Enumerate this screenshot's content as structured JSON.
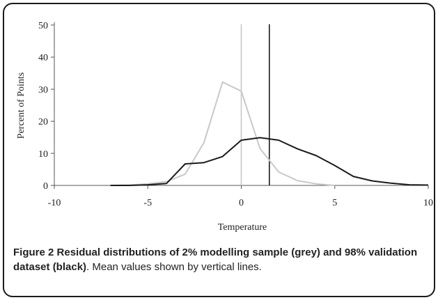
{
  "chart_data": {
    "type": "line",
    "xlabel": "Temperature",
    "ylabel": "Percent of Points",
    "xlim": [
      -10,
      10
    ],
    "ylim": [
      0,
      50
    ],
    "xticks": [
      -10,
      -5,
      0,
      5,
      10
    ],
    "yticks": [
      0,
      10,
      20,
      30,
      40,
      50
    ],
    "grid": false,
    "series": [
      {
        "color": "#c8c8c8",
        "x": [
          -7,
          -6,
          -5,
          -4,
          -3,
          -2,
          -1,
          0,
          1,
          2,
          3,
          4,
          5
        ],
        "y": [
          0,
          0.1,
          0.5,
          1.2,
          3.5,
          13.3,
          32.2,
          29.4,
          11.5,
          4.2,
          1.5,
          0.5,
          0
        ]
      },
      {
        "color": "#1a1a1a",
        "x": [
          -7,
          -6,
          -5,
          -4,
          -3,
          -2,
          -1,
          0,
          1,
          2,
          3,
          4,
          5,
          6,
          7,
          8,
          9,
          10
        ],
        "y": [
          0,
          0,
          0.2,
          0.6,
          6.7,
          7.1,
          9.0,
          14.1,
          14.9,
          14.1,
          11.4,
          9.3,
          6.2,
          2.8,
          1.4,
          0.7,
          0.2,
          0.1
        ]
      }
    ],
    "mean_lines": [
      {
        "color": "#c8c8c8",
        "x": 0
      },
      {
        "color": "#1a1a1a",
        "x": 1.5
      }
    ]
  },
  "caption": {
    "label": "Figure 2",
    "bold_text": " Residual distributions of 2% modelling sample (grey) and 98% validation dataset (black)",
    "rest": ". Mean values shown by vertical lines."
  }
}
